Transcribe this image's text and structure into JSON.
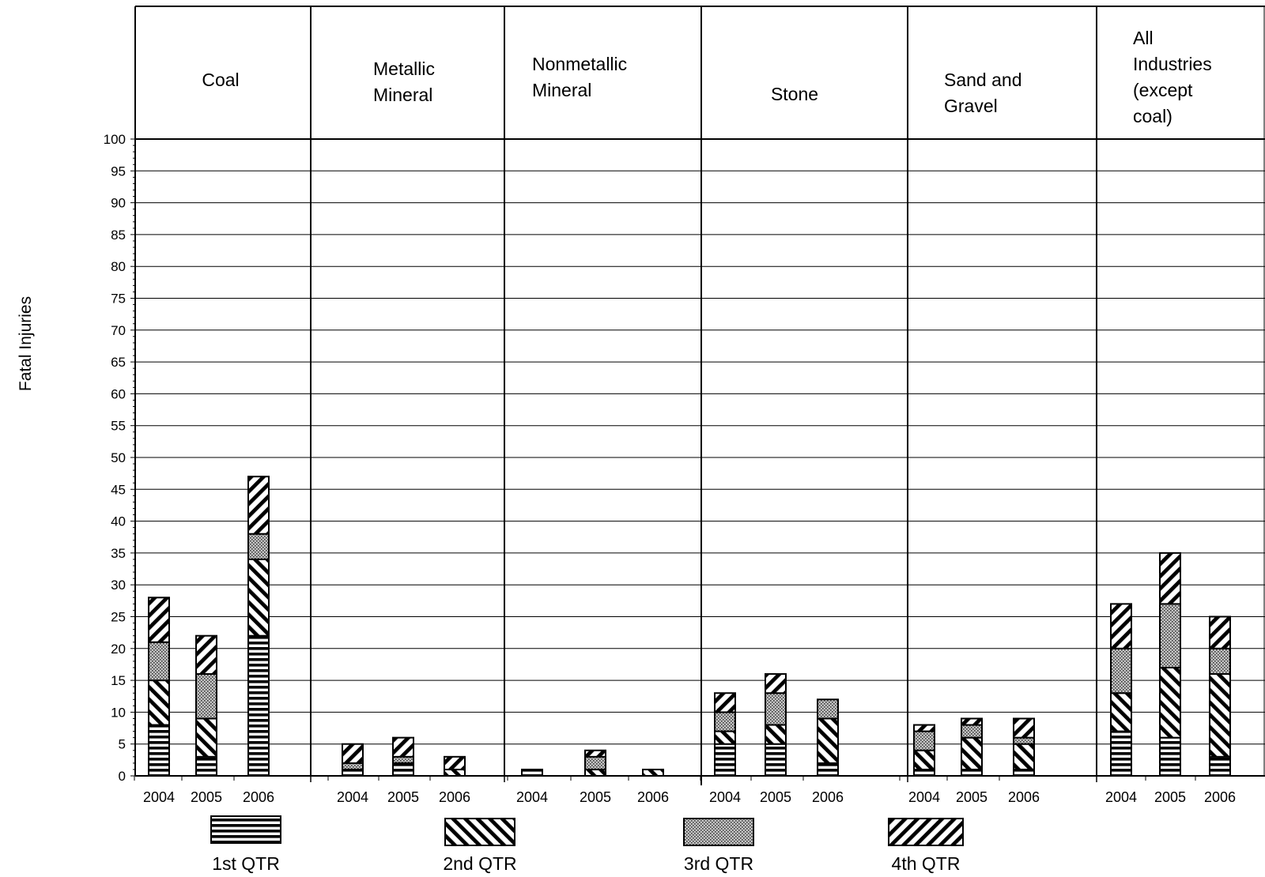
{
  "chart_data": {
    "type": "bar",
    "stacked": true,
    "ylabel": "Fatal Injuries",
    "xlabel": "",
    "ylim": [
      0,
      100
    ],
    "yticks": [
      0,
      5,
      10,
      15,
      20,
      25,
      30,
      35,
      40,
      45,
      50,
      55,
      60,
      65,
      70,
      75,
      80,
      85,
      90,
      95,
      100
    ],
    "grid": true,
    "legend_position": "bottom",
    "series": [
      {
        "name": "1st QTR",
        "pattern": "horizontal-stripes"
      },
      {
        "name": "2nd QTR",
        "pattern": "diagonal-backslash"
      },
      {
        "name": "3rd QTR",
        "pattern": "dotted"
      },
      {
        "name": "4th QTR",
        "pattern": "diagonal-slash"
      }
    ],
    "groups": [
      {
        "name": "Coal",
        "categories": [
          "2004",
          "2005",
          "2006"
        ],
        "values": [
          [
            8,
            7,
            6,
            7
          ],
          [
            3,
            6,
            7,
            6
          ],
          [
            22,
            12,
            4,
            9
          ]
        ]
      },
      {
        "name": "Metallic Mineral",
        "categories": [
          "2004",
          "2005",
          "2006"
        ],
        "values": [
          [
            1,
            0,
            1,
            3
          ],
          [
            2,
            0,
            1,
            3
          ],
          [
            0,
            1,
            0,
            2
          ]
        ]
      },
      {
        "name": "Nonmetallic Mineral",
        "categories": [
          "2004",
          "2005",
          "2006"
        ],
        "values": [
          [
            1,
            0,
            0,
            0
          ],
          [
            0,
            1,
            2,
            1
          ],
          [
            0,
            1,
            0,
            0
          ]
        ]
      },
      {
        "name": "Stone",
        "categories": [
          "2004",
          "2005",
          "2006"
        ],
        "values": [
          [
            5,
            2,
            3,
            3
          ],
          [
            5,
            3,
            5,
            3
          ],
          [
            2,
            7,
            3,
            0
          ]
        ]
      },
      {
        "name": "Sand and Gravel",
        "categories": [
          "2004",
          "2005",
          "2006"
        ],
        "values": [
          [
            1,
            3,
            3,
            1
          ],
          [
            1,
            5,
            2,
            1
          ],
          [
            1,
            4,
            1,
            3
          ]
        ]
      },
      {
        "name": "All Industries (except coal)",
        "categories": [
          "2004",
          "2005",
          "2006"
        ],
        "values": [
          [
            7,
            6,
            7,
            7
          ],
          [
            6,
            11,
            10,
            8
          ],
          [
            3,
            13,
            4,
            5
          ]
        ]
      }
    ]
  }
}
